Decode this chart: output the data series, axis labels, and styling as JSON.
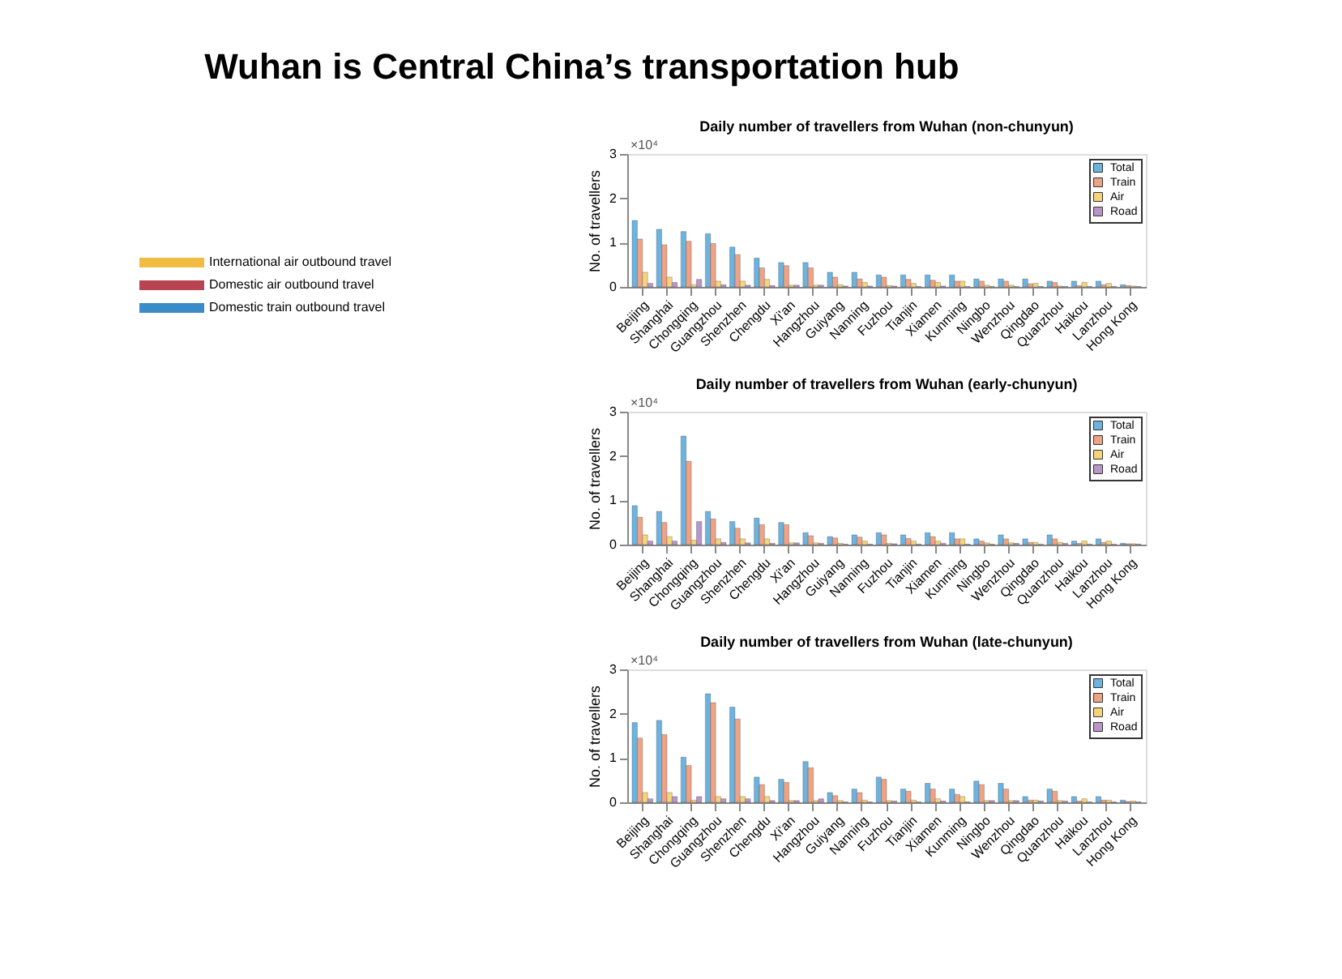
{
  "chart_data": [
    {
      "type": "other",
      "title": "Wuhan is Central China’s transportation hub",
      "legend": "top",
      "series": [
        {
          "name": "International air outbound travel",
          "color": "#f0bc42"
        },
        {
          "name": "Domestic air outbound travel",
          "color": "#b84452"
        },
        {
          "name": "Domestic train outbound travel",
          "color": "#3a8cc8"
        }
      ]
    },
    {
      "type": "bar",
      "title": "Daily number of travellers from Wuhan (non-chunyun)",
      "ylabel": "No. of travellers",
      "annotations": [
        "×10⁴"
      ],
      "categories": [
        "Beijing",
        "Shanghai",
        "Chongqing",
        "Guangzhou",
        "Shenzhen",
        "Chengdu",
        "Xi'an",
        "Hangzhou",
        "Guiyang",
        "Nanning",
        "Fuzhou",
        "Tianjin",
        "Xiamen",
        "Kunming",
        "Ningbo",
        "Wenzhou",
        "Qingdao",
        "Quanzhou",
        "Haikou",
        "Lanzhou",
        "Hong Kong"
      ],
      "ylim": [
        0,
        3
      ],
      "yticks": [
        0,
        1,
        2,
        3
      ],
      "grid": false,
      "legend": "top right",
      "series": [
        {
          "name": "Total",
          "color": "#6db3e0",
          "values": [
            1.5,
            1.3,
            1.25,
            1.2,
            0.9,
            0.65,
            0.55,
            0.55,
            0.33,
            0.33,
            0.27,
            0.27,
            0.27,
            0.27,
            0.18,
            0.18,
            0.18,
            0.13,
            0.13,
            0.13,
            0.05
          ]
        },
        {
          "name": "Train",
          "color": "#efa384",
          "values": [
            1.08,
            0.95,
            1.03,
            0.98,
            0.73,
            0.43,
            0.48,
            0.43,
            0.22,
            0.18,
            0.22,
            0.17,
            0.15,
            0.13,
            0.13,
            0.13,
            0.07,
            0.1,
            0.03,
            0.05,
            0.03
          ]
        },
        {
          "name": "Air",
          "color": "#f6d47c",
          "values": [
            0.33,
            0.22,
            0.05,
            0.13,
            0.13,
            0.17,
            0.04,
            0.04,
            0.05,
            0.1,
            0.03,
            0.08,
            0.1,
            0.13,
            0.04,
            0.04,
            0.08,
            0.02,
            0.1,
            0.08,
            0.02
          ]
        },
        {
          "name": "Road",
          "color": "#b896c8",
          "values": [
            0.08,
            0.1,
            0.17,
            0.05,
            0.04,
            0.03,
            0.04,
            0.04,
            0.02,
            0.02,
            0.02,
            0.01,
            0.02,
            0.01,
            0.01,
            0.01,
            0.01,
            0.01,
            0.01,
            0.01,
            0.01
          ]
        }
      ]
    },
    {
      "type": "bar",
      "title": "Daily number of travellers from Wuhan (early-chunyun)",
      "ylabel": "No. of travellers",
      "annotations": [
        "×10⁴"
      ],
      "categories": [
        "Beijing",
        "Shanghai",
        "Chongqing",
        "Guangzhou",
        "Shenzhen",
        "Chengdu",
        "Xi'an",
        "Hangzhou",
        "Guiyang",
        "Nanning",
        "Fuzhou",
        "Tianjin",
        "Xiamen",
        "Kunming",
        "Ningbo",
        "Wenzhou",
        "Qingdao",
        "Quanzhou",
        "Haikou",
        "Lanzhou",
        "Hong Kong"
      ],
      "ylim": [
        0,
        3
      ],
      "yticks": [
        0,
        1,
        2,
        3
      ],
      "grid": false,
      "legend": "top right",
      "series": [
        {
          "name": "Total",
          "color": "#6db3e0",
          "values": [
            0.88,
            0.75,
            2.45,
            0.75,
            0.52,
            0.6,
            0.5,
            0.27,
            0.18,
            0.22,
            0.27,
            0.22,
            0.27,
            0.27,
            0.13,
            0.22,
            0.13,
            0.22,
            0.08,
            0.13,
            0.03
          ]
        },
        {
          "name": "Train",
          "color": "#efa384",
          "values": [
            0.62,
            0.5,
            1.88,
            0.58,
            0.37,
            0.45,
            0.45,
            0.2,
            0.15,
            0.17,
            0.22,
            0.14,
            0.18,
            0.13,
            0.08,
            0.13,
            0.05,
            0.13,
            0.03,
            0.05,
            0.02
          ]
        },
        {
          "name": "Air",
          "color": "#f6d47c",
          "values": [
            0.22,
            0.18,
            0.1,
            0.13,
            0.13,
            0.13,
            0.04,
            0.04,
            0.03,
            0.08,
            0.03,
            0.08,
            0.08,
            0.13,
            0.04,
            0.04,
            0.05,
            0.05,
            0.08,
            0.08,
            0.02
          ]
        },
        {
          "name": "Road",
          "color": "#b896c8",
          "values": [
            0.08,
            0.08,
            0.52,
            0.05,
            0.04,
            0.03,
            0.04,
            0.03,
            0.01,
            0.01,
            0.02,
            0.01,
            0.03,
            0.01,
            0.01,
            0.03,
            0.01,
            0.03,
            0.01,
            0.01,
            0.01
          ]
        }
      ]
    },
    {
      "type": "bar",
      "title": "Daily number of travellers from Wuhan (late-chunyun)",
      "ylabel": "No. of travellers",
      "annotations": [
        "×10⁴"
      ],
      "categories": [
        "Beijing",
        "Shanghai",
        "Chongqing",
        "Guangzhou",
        "Shenzhen",
        "Chengdu",
        "Xi'an",
        "Hangzhou",
        "Guiyang",
        "Nanning",
        "Fuzhou",
        "Tianjin",
        "Xiamen",
        "Kunming",
        "Ningbo",
        "Wenzhou",
        "Qingdao",
        "Quanzhou",
        "Haikou",
        "Lanzhou",
        "Hong Kong"
      ],
      "ylim": [
        0,
        3
      ],
      "yticks": [
        0,
        1,
        2,
        3
      ],
      "grid": false,
      "legend": "top right",
      "series": [
        {
          "name": "Total",
          "color": "#6db3e0",
          "values": [
            1.8,
            1.85,
            1.02,
            2.45,
            2.15,
            0.57,
            0.52,
            0.92,
            0.22,
            0.3,
            0.57,
            0.3,
            0.43,
            0.3,
            0.48,
            0.43,
            0.13,
            0.3,
            0.13,
            0.13,
            0.05
          ]
        },
        {
          "name": "Train",
          "color": "#efa384",
          "values": [
            1.45,
            1.53,
            0.83,
            2.25,
            1.88,
            0.4,
            0.45,
            0.78,
            0.15,
            0.22,
            0.52,
            0.25,
            0.3,
            0.18,
            0.4,
            0.3,
            0.05,
            0.25,
            0.03,
            0.05,
            0.02
          ]
        },
        {
          "name": "Air",
          "color": "#f6d47c",
          "values": [
            0.22,
            0.22,
            0.05,
            0.13,
            0.13,
            0.13,
            0.04,
            0.04,
            0.04,
            0.05,
            0.04,
            0.05,
            0.08,
            0.13,
            0.04,
            0.04,
            0.05,
            0.04,
            0.08,
            0.05,
            0.03
          ]
        },
        {
          "name": "Road",
          "color": "#b896c8",
          "values": [
            0.08,
            0.13,
            0.13,
            0.08,
            0.08,
            0.04,
            0.04,
            0.08,
            0.01,
            0.01,
            0.03,
            0.01,
            0.03,
            0.01,
            0.04,
            0.04,
            0.03,
            0.03,
            0.01,
            0.01,
            0.01
          ]
        }
      ]
    }
  ]
}
